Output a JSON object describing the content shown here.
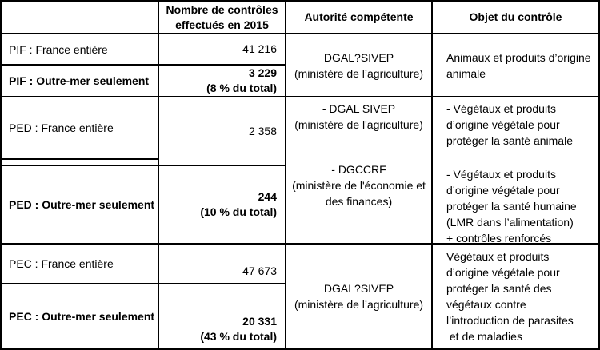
{
  "header": {
    "count_col": [
      "Nombre de contrôles",
      "effectués en 2015"
    ],
    "authority_col": "Autorité compétente",
    "object_col": "Objet du contrôle"
  },
  "pif": {
    "france": {
      "label": "PIF : France entière",
      "count": "41 216"
    },
    "outre_mer": {
      "label": "PIF : Outre-mer seulement",
      "count": "3 229",
      "share": "(8 % du total)"
    },
    "authority": [
      "DGAL?SIVEP",
      "(ministère de l’agriculture)"
    ],
    "object": [
      "Animaux et produits d’origine",
      "animale"
    ]
  },
  "ped": {
    "france": {
      "label": "PED : France entière",
      "count": "2 358"
    },
    "outre_mer": {
      "label": "PED : Outre-mer seulement",
      "count": "244",
      "share": "(10 % du total)"
    },
    "authority_1": [
      "- DGAL SIVEP",
      "(ministère de l'agriculture)"
    ],
    "authority_2": [
      "- DGCCRF",
      "(ministère de l'économie et",
      "des finances)"
    ],
    "object_1": [
      "- Végétaux et produits",
      "d’origine végétale pour",
      "protéger la santé animale"
    ],
    "object_2": [
      "- Végétaux et produits",
      "d’origine végétale pour",
      "protéger la santé humaine",
      "(LMR dans l’alimentation)",
      "+ contrôles renforcés"
    ]
  },
  "pec": {
    "france": {
      "label": "PEC : France entière",
      "count": "47 673"
    },
    "outre_mer": {
      "label": "PEC : Outre-mer seulement",
      "count": "20 331",
      "share": "(43 % du total)"
    },
    "authority": [
      "DGAL?SIVEP",
      "(ministère de l’agriculture)"
    ],
    "object": [
      "Végétaux et produits",
      "d’origine végétale pour",
      "protéger la santé des",
      "végétaux contre",
      "l’introduction de parasites",
      " et de maladies"
    ]
  },
  "colors": {
    "border": "#000000",
    "text": "#000000",
    "background": "#ffffff"
  }
}
